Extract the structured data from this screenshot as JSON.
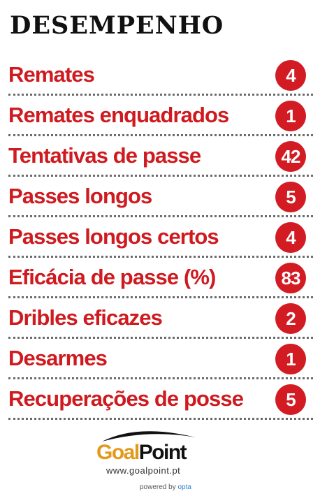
{
  "title": "DESEMPENHO",
  "stats": [
    {
      "label": "Remates",
      "value": "4"
    },
    {
      "label": "Remates enquadrados",
      "value": "1"
    },
    {
      "label": "Tentativas de passe",
      "value": "42"
    },
    {
      "label": "Passes longos",
      "value": "5"
    },
    {
      "label": "Passes longos certos",
      "value": "4"
    },
    {
      "label": "Eficácia de passe (%)",
      "value": "83"
    },
    {
      "label": "Dribles eficazes",
      "value": "2"
    },
    {
      "label": "Desarmes",
      "value": "1"
    },
    {
      "label": "Recuperações de posse",
      "value": "5"
    }
  ],
  "logo": {
    "name_part1": "Goal",
    "name_part2": "Point",
    "url": "www.goalpoint.pt",
    "powered_prefix": "powered by",
    "powered_brand": "opta"
  },
  "colors": {
    "label": "#cf1a1f",
    "badge": "#d21b22",
    "title": "#111111",
    "logo_orange": "#e39a1b"
  }
}
